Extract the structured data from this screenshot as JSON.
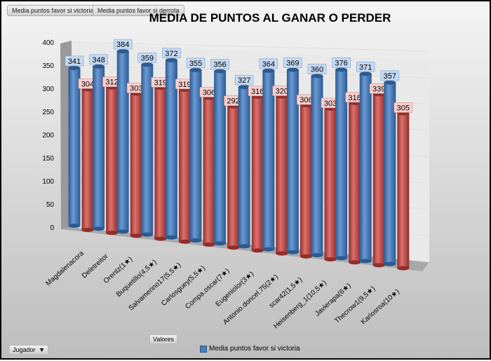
{
  "pivot_buttons": [
    "Media puntos favor si victoria",
    "Media puntos favor si derrota"
  ],
  "values_button": "Valores",
  "row_field": {
    "label": "Jugador",
    "arrow": "▼"
  },
  "legend": {
    "label": "Media puntos favor si victoria"
  },
  "colors": {
    "victoria": "#4a7ebb",
    "derrota": "#c0504d"
  },
  "chart_data": {
    "type": "bar",
    "title": "MEDIA DE PUNTOS AL GANAR O PERDER",
    "ylim": [
      0,
      400
    ],
    "yticks": [
      "0",
      "50",
      "100",
      "150",
      "200",
      "250",
      "300",
      "350",
      "400"
    ],
    "categories": [
      "Magdalenacora",
      "Deletreitor",
      "Orentz(1★)",
      "Buquetillo(4,5★)",
      "Salvamerino17(5,5★)",
      "Carlosguey(5,5★)",
      "Compa.oscar(7★)",
      "Eugeniolor(3★)",
      "Antonio.doncel.75(2★)",
      "scar42(1,5★)",
      "Heisenberg_1(10,5★)",
      "Javierapa(6★)",
      "Thecrow1(9,5★)",
      "Karlosroa(10★)"
    ],
    "series": [
      {
        "name": "Media puntos favor si victoria",
        "values": [
          341,
          348,
          384,
          359,
          372,
          355,
          356,
          327,
          364,
          369,
          360,
          376,
          371,
          357
        ]
      },
      {
        "name": "Media puntos favor si derrota",
        "values": [
          304,
          312,
          303,
          319,
          319,
          306,
          292,
          316,
          320,
          306,
          303,
          318,
          339,
          305
        ]
      }
    ]
  }
}
